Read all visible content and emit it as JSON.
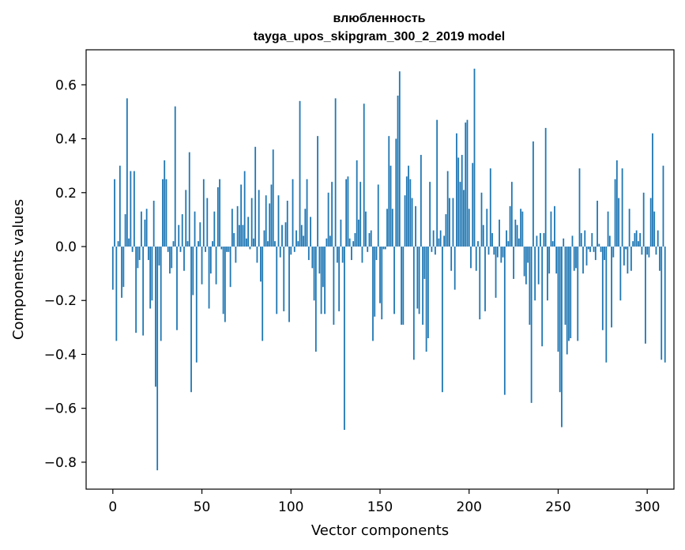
{
  "chart_data": {
    "type": "bar",
    "title": "влюбленность",
    "subtitle": "tayga_upos_skipgram_300_2_2019 model",
    "xlabel": "Vector components",
    "ylabel": "Components values",
    "xlim": [
      -15,
      315
    ],
    "ylim": [
      -0.9,
      0.73
    ],
    "xticks": [
      0,
      50,
      100,
      150,
      200,
      250,
      300
    ],
    "xtick_labels": [
      "0",
      "50",
      "100",
      "150",
      "200",
      "250",
      "300"
    ],
    "yticks": [
      -0.8,
      -0.6,
      -0.4,
      -0.2,
      0.0,
      0.2,
      0.4,
      0.6
    ],
    "ytick_labels": [
      "−0.8",
      "−0.6",
      "−0.4",
      "−0.2",
      "0.0",
      "0.2",
      "0.4",
      "0.6"
    ],
    "grid": false,
    "bar_color": "#1f77b4",
    "x_start": 0,
    "values": [
      -0.16,
      0.25,
      -0.35,
      0.02,
      0.3,
      -0.19,
      -0.15,
      0.12,
      0.55,
      0.03,
      0.28,
      -0.02,
      0.28,
      -0.32,
      -0.08,
      -0.05,
      0.13,
      -0.33,
      0.1,
      0.14,
      -0.05,
      -0.23,
      -0.2,
      0.17,
      -0.52,
      -0.83,
      -0.07,
      -0.35,
      0.25,
      0.32,
      0.25,
      -0.02,
      -0.1,
      -0.08,
      0.02,
      0.52,
      -0.31,
      0.08,
      -0.02,
      0.12,
      -0.09,
      0.21,
      0.02,
      0.35,
      -0.54,
      -0.18,
      0.13,
      -0.43,
      0.02,
      0.09,
      -0.14,
      0.25,
      -0.02,
      0.18,
      -0.23,
      -0.1,
      0.02,
      0.13,
      -0.14,
      0.22,
      0.25,
      -0.01,
      -0.25,
      -0.28,
      -0.02,
      -0.02,
      -0.15,
      0.14,
      0.05,
      -0.06,
      0.15,
      0.08,
      0.23,
      0.08,
      0.28,
      0.03,
      0.11,
      -0.01,
      0.18,
      0.03,
      0.37,
      -0.06,
      0.21,
      -0.13,
      -0.35,
      0.06,
      0.19,
      0.02,
      0.16,
      0.23,
      0.36,
      0.02,
      -0.25,
      0.19,
      -0.04,
      0.08,
      -0.24,
      0.09,
      0.17,
      -0.28,
      -0.03,
      0.25,
      -0.02,
      0.06,
      0.02,
      0.54,
      0.08,
      0.04,
      0.14,
      0.25,
      -0.05,
      0.11,
      -0.08,
      -0.2,
      -0.39,
      0.41,
      -0.1,
      -0.25,
      -0.15,
      -0.25,
      0.03,
      0.2,
      0.04,
      0.24,
      -0.29,
      0.55,
      -0.06,
      -0.24,
      0.1,
      -0.06,
      -0.68,
      0.25,
      0.26,
      0.03,
      -0.05,
      0.02,
      0.05,
      0.32,
      0.1,
      0.24,
      -0.06,
      0.53,
      0.13,
      -0.02,
      0.05,
      0.06,
      -0.35,
      -0.26,
      -0.05,
      0.23,
      -0.21,
      -0.27,
      -0.01,
      -0.01,
      0.14,
      0.41,
      0.3,
      0.14,
      -0.25,
      0.4,
      0.56,
      0.65,
      -0.29,
      -0.29,
      0.19,
      0.26,
      0.3,
      0.25,
      0.18,
      -0.42,
      0.15,
      -0.23,
      -0.25,
      0.34,
      -0.29,
      -0.12,
      -0.39,
      -0.34,
      0.24,
      -0.02,
      0.06,
      -0.03,
      0.47,
      0.03,
      0.06,
      -0.54,
      0.04,
      0.12,
      0.28,
      0.18,
      -0.09,
      0.18,
      -0.16,
      0.42,
      0.33,
      0.24,
      0.34,
      0.21,
      0.46,
      0.47,
      0.14,
      -0.08,
      0.31,
      0.66,
      -0.09,
      0.02,
      -0.27,
      0.2,
      0.08,
      -0.24,
      0.14,
      -0.03,
      0.29,
      0.05,
      -0.03,
      -0.19,
      -0.04,
      0.1,
      -0.06,
      -0.04,
      -0.55,
      0.06,
      0.02,
      0.15,
      0.24,
      -0.12,
      0.1,
      0.08,
      0.03,
      0.14,
      0.13,
      -0.11,
      -0.14,
      -0.06,
      -0.29,
      -0.58,
      0.39,
      -0.2,
      0.04,
      -0.14,
      0.05,
      -0.37,
      0.05,
      0.44,
      -0.2,
      -0.1,
      0.13,
      0.02,
      0.15,
      -0.1,
      -0.39,
      -0.54,
      -0.67,
      0.03,
      -0.29,
      -0.4,
      -0.35,
      -0.34,
      0.04,
      -0.09,
      -0.08,
      -0.35,
      0.29,
      0.05,
      -0.1,
      0.06,
      -0.07,
      -0.01,
      -0.02,
      0.05,
      -0.02,
      -0.05,
      0.17,
      0.01,
      -0.02,
      -0.31,
      -0.05,
      -0.43,
      0.13,
      0.04,
      -0.3,
      -0.04,
      0.25,
      0.32,
      0.18,
      -0.2,
      0.29,
      -0.07,
      -0.01,
      -0.1,
      0.14,
      -0.09,
      0.02,
      0.05,
      0.06,
      0.02,
      0.05,
      -0.03,
      0.2,
      -0.36,
      -0.03,
      -0.04,
      0.18,
      0.42,
      0.13,
      -0.03,
      0.06,
      -0.09,
      -0.42,
      0.3,
      -0.43
    ]
  }
}
